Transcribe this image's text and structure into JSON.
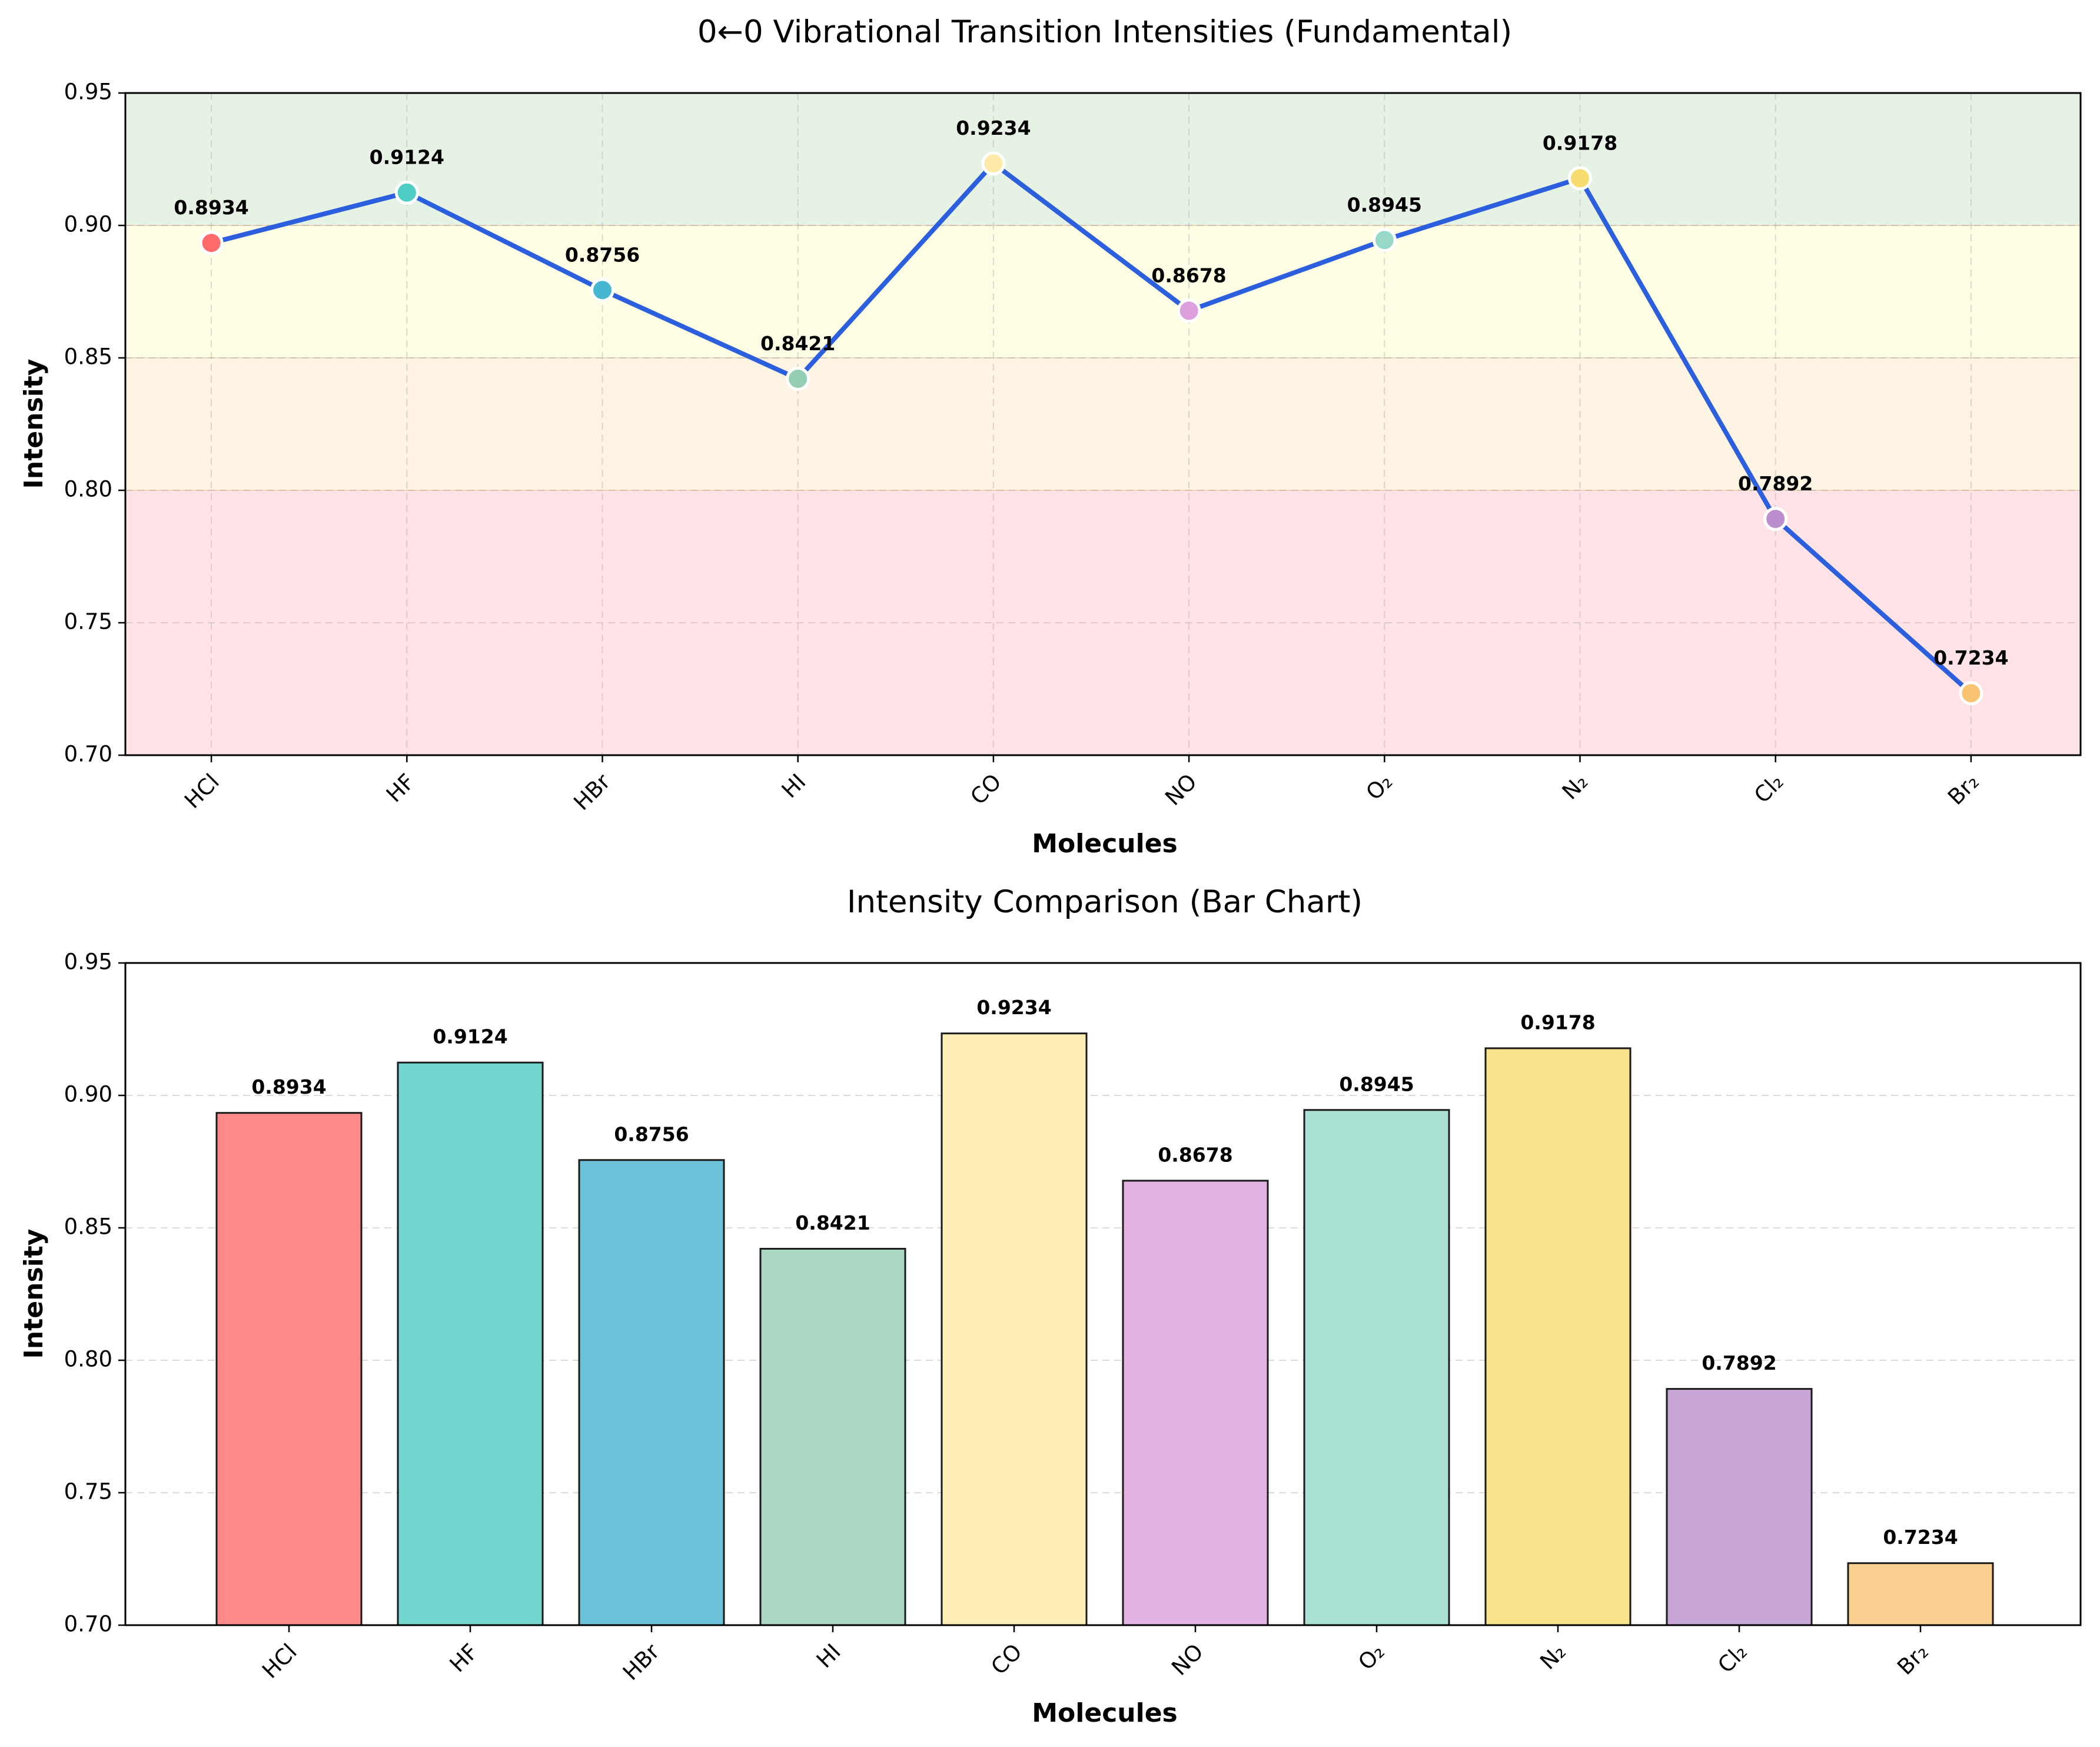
{
  "chart_data": [
    {
      "type": "line",
      "title": "0←0 Vibrational Transition Intensities (Fundamental)",
      "xlabel": "Molecules",
      "ylabel": "Intensity",
      "categories": [
        "HCl",
        "HF",
        "HBr",
        "HI",
        "CO",
        "NO",
        "O₂",
        "N₂",
        "Cl₂",
        "Br₂"
      ],
      "values": [
        0.8934,
        0.9124,
        0.8756,
        0.8421,
        0.9234,
        0.8678,
        0.8945,
        0.9178,
        0.7892,
        0.7234
      ],
      "value_labels": [
        "0.8934",
        "0.9124",
        "0.8756",
        "0.8421",
        "0.9234",
        "0.8678",
        "0.8945",
        "0.9178",
        "0.7892",
        "0.7234"
      ],
      "ylim": [
        0.7,
        0.95
      ],
      "yticks": [
        "0.70",
        "0.75",
        "0.80",
        "0.85",
        "0.90",
        "0.95"
      ],
      "grid": true,
      "line_color": "#2b5fde",
      "marker_colors": [
        "#ff6b6b",
        "#4ecdc4",
        "#45b7d1",
        "#96ceb4",
        "#ffeaa7",
        "#dda0dd",
        "#98d8c8",
        "#f7dc6f",
        "#bb8fce",
        "#f8c471"
      ],
      "bands": [
        {
          "range": [
            0.9,
            0.95
          ],
          "color": "#e6f2e4"
        },
        {
          "range": [
            0.85,
            0.9
          ],
          "color": "#fefee4"
        },
        {
          "range": [
            0.8,
            0.85
          ],
          "color": "#fdf4e4"
        },
        {
          "range": [
            0.7,
            0.8
          ],
          "color": "#ffe3e6"
        }
      ]
    },
    {
      "type": "bar",
      "title": "Intensity Comparison (Bar Chart)",
      "xlabel": "Molecules",
      "ylabel": "Intensity",
      "categories": [
        "HCl",
        "HF",
        "HBr",
        "HI",
        "CO",
        "NO",
        "O₂",
        "N₂",
        "Cl₂",
        "Br₂"
      ],
      "values": [
        0.8934,
        0.9124,
        0.8756,
        0.8421,
        0.9234,
        0.8678,
        0.8945,
        0.9178,
        0.7892,
        0.7234
      ],
      "value_labels": [
        "0.8934",
        "0.9124",
        "0.8756",
        "0.8421",
        "0.9234",
        "0.8678",
        "0.8945",
        "0.9178",
        "0.7892",
        "0.7234"
      ],
      "ylim": [
        0.7,
        0.95
      ],
      "yticks": [
        "0.70",
        "0.75",
        "0.80",
        "0.85",
        "0.90",
        "0.95"
      ],
      "grid": "y-only",
      "bar_colors": [
        "#ff8a8a",
        "#74d7cf",
        "#6bc2d9",
        "#acd8c3",
        "#ffeeb5",
        "#e3b3e3",
        "#abe0d4",
        "#f7e38a",
        "#c8a5d7",
        "#f9d08f"
      ]
    }
  ]
}
